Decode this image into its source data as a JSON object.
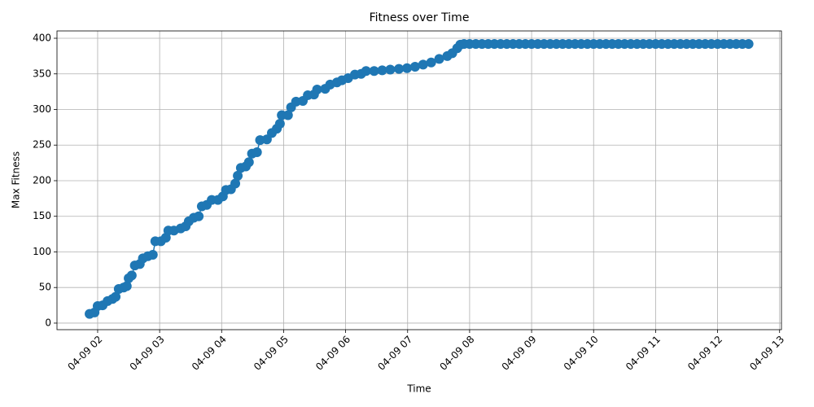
{
  "chart_data": {
    "type": "line",
    "title": "Fitness over Time",
    "xlabel": "Time",
    "ylabel": "Max Fitness",
    "color": "#1f77b4",
    "grid": true,
    "markers": true,
    "x": [
      1.87,
      1.95,
      2.0,
      2.08,
      2.16,
      2.24,
      2.29,
      2.34,
      2.42,
      2.47,
      2.5,
      2.55,
      2.6,
      2.68,
      2.73,
      2.81,
      2.89,
      2.93,
      3.02,
      3.1,
      3.14,
      3.23,
      3.34,
      3.42,
      3.47,
      3.55,
      3.63,
      3.68,
      3.76,
      3.84,
      3.94,
      4.02,
      4.07,
      4.15,
      4.22,
      4.26,
      4.31,
      4.39,
      4.44,
      4.49,
      4.57,
      4.62,
      4.73,
      4.81,
      4.89,
      4.94,
      4.97,
      5.07,
      5.12,
      5.2,
      5.31,
      5.39,
      5.49,
      5.54,
      5.67,
      5.75,
      5.86,
      5.94,
      6.04,
      6.15,
      6.25,
      6.33,
      6.46,
      6.59,
      6.72,
      6.86,
      6.99,
      7.12,
      7.25,
      7.38,
      7.51,
      7.64,
      7.72,
      7.8,
      7.85,
      7.91,
      8.0,
      8.1,
      8.2,
      8.3,
      8.4,
      8.5,
      8.6,
      8.7,
      8.8,
      8.9,
      9.0,
      9.1,
      9.2,
      9.3,
      9.4,
      9.5,
      9.6,
      9.7,
      9.8,
      9.9,
      10.0,
      10.1,
      10.2,
      10.3,
      10.4,
      10.5,
      10.6,
      10.7,
      10.8,
      10.9,
      11.0,
      11.1,
      11.2,
      11.3,
      11.4,
      11.5,
      11.6,
      11.7,
      11.8,
      11.9,
      12.0,
      12.1,
      12.2,
      12.3,
      12.4,
      12.5
    ],
    "values": [
      13,
      15,
      24,
      25,
      31,
      34,
      37,
      48,
      50,
      52,
      63,
      67,
      81,
      83,
      91,
      94,
      96,
      115,
      115,
      120,
      130,
      130,
      133,
      136,
      143,
      148,
      150,
      164,
      166,
      173,
      173,
      178,
      187,
      188,
      196,
      207,
      218,
      220,
      226,
      238,
      240,
      257,
      258,
      267,
      273,
      280,
      292,
      292,
      303,
      311,
      312,
      320,
      321,
      328,
      329,
      335,
      338,
      341,
      344,
      349,
      350,
      354,
      354,
      355,
      356,
      357,
      358,
      360,
      363,
      366,
      371,
      375,
      379,
      386,
      391,
      392,
      392,
      392,
      392,
      392,
      392,
      392,
      392,
      392,
      392,
      392,
      392,
      392,
      392,
      392,
      392,
      392,
      392,
      392,
      392,
      392,
      392,
      392,
      392,
      392,
      392,
      392,
      392,
      392,
      392,
      392,
      392,
      392,
      392,
      392,
      392,
      392,
      392,
      392,
      392,
      392,
      392,
      392,
      392,
      392,
      392,
      392
    ],
    "xlim": [
      1.344,
      13.03
    ],
    "xticks": [
      {
        "value": 2,
        "label": "04-09 02"
      },
      {
        "value": 3,
        "label": "04-09 03"
      },
      {
        "value": 4,
        "label": "04-09 04"
      },
      {
        "value": 5,
        "label": "04-09 05"
      },
      {
        "value": 6,
        "label": "04-09 06"
      },
      {
        "value": 7,
        "label": "04-09 07"
      },
      {
        "value": 8,
        "label": "04-09 08"
      },
      {
        "value": 9,
        "label": "04-09 09"
      },
      {
        "value": 10,
        "label": "04-09 10"
      },
      {
        "value": 11,
        "label": "04-09 11"
      },
      {
        "value": 12,
        "label": "04-09 12"
      },
      {
        "value": 13,
        "label": "04-09 13"
      }
    ],
    "ylim": [
      -9.2,
      410.3
    ],
    "yticks": [
      0,
      50,
      100,
      150,
      200,
      250,
      300,
      350,
      400
    ]
  }
}
